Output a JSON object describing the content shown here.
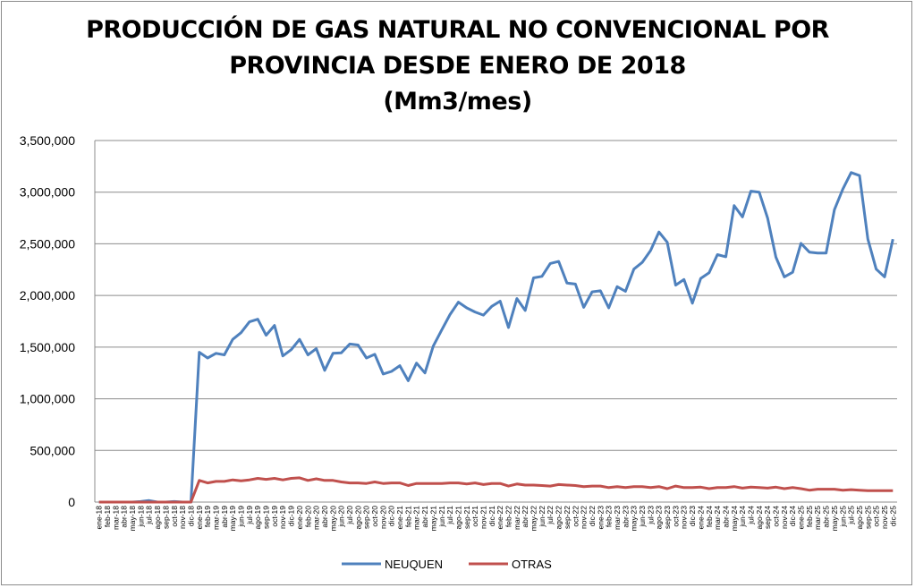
{
  "chart_data": {
    "type": "line",
    "title_lines": [
      "PRODUCCIÓN DE GAS NATURAL NO CONVENCIONAL POR",
      "PROVINCIA DESDE ENERO DE 2018",
      "(Mm3/mes)"
    ],
    "xlabel": "",
    "ylabel": "",
    "ylim": [
      0,
      3500000
    ],
    "y_ticks": [
      0,
      500000,
      1000000,
      1500000,
      2000000,
      2500000,
      3000000,
      3500000
    ],
    "y_tick_labels": [
      "0",
      "500,000",
      "1,000,000",
      "1,500,000",
      "2,000,000",
      "2,500,000",
      "3,000,000",
      "3,500,000"
    ],
    "grid": "horizontal",
    "legend_position": "bottom",
    "categories": [
      "ene-18",
      "feb-18",
      "mar-18",
      "abr-18",
      "may-18",
      "jun-18",
      "jul-18",
      "ago-18",
      "sep-18",
      "oct-18",
      "nov-18",
      "dic-18",
      "ene-19",
      "feb-19",
      "mar-19",
      "abr-19",
      "may-19",
      "jun-19",
      "jul-19",
      "ago-19",
      "sep-19",
      "oct-19",
      "nov-19",
      "dic-19",
      "ene-20",
      "feb-20",
      "mar-20",
      "abr-20",
      "may-20",
      "jun-20",
      "jul-20",
      "ago-20",
      "sep-20",
      "oct-20",
      "nov-20",
      "dic-20",
      "ene-21",
      "feb-21",
      "mar-21",
      "abr-21",
      "may-21",
      "jun-21",
      "jul-21",
      "ago-21",
      "sep-21",
      "oct-21",
      "nov-21",
      "dic-21",
      "ene-22",
      "feb-22",
      "mar-22",
      "abr-22",
      "may-22",
      "jun-22",
      "jul-22",
      "ago-22",
      "sep-22",
      "oct-22",
      "nov-22",
      "dic-22",
      "ene-23",
      "feb-23",
      "mar-23",
      "abr-23",
      "may-23",
      "jun-23",
      "jul-23",
      "ago-23",
      "sep-23",
      "oct-23",
      "nov-23",
      "dic-23",
      "ene-24",
      "feb-24",
      "mar-24",
      "abr-24",
      "may-24",
      "jun-24",
      "jul-24",
      "ago-24",
      "sep-24",
      "oct-24",
      "nov-24",
      "dic-24",
      "ene-25",
      "feb-25",
      "mar-25",
      "abr-25",
      "may-25",
      "jun-25",
      "jul-25",
      "ago-25",
      "sep-25",
      "oct-25",
      "nov-25",
      "dic-25"
    ],
    "series": [
      {
        "name": "NEUQUEN",
        "color": "#4f81bd",
        "values": [
          0,
          0,
          0,
          0,
          0,
          5000,
          15000,
          0,
          0,
          5000,
          0,
          0,
          1450000,
          1395000,
          1440000,
          1425000,
          1575000,
          1640000,
          1745000,
          1770000,
          1615000,
          1710000,
          1415000,
          1475000,
          1575000,
          1425000,
          1485000,
          1275000,
          1440000,
          1445000,
          1530000,
          1520000,
          1395000,
          1430000,
          1240000,
          1265000,
          1320000,
          1175000,
          1345000,
          1250000,
          1510000,
          1665000,
          1815000,
          1935000,
          1880000,
          1840000,
          1810000,
          1895000,
          1945000,
          1690000,
          1970000,
          1855000,
          2170000,
          2185000,
          2310000,
          2330000,
          2120000,
          2110000,
          1885000,
          2035000,
          2045000,
          1880000,
          2085000,
          2040000,
          2255000,
          2320000,
          2435000,
          2615000,
          2515000,
          2100000,
          2155000,
          1925000,
          2165000,
          2220000,
          2395000,
          2375000,
          2870000,
          2760000,
          3010000,
          3000000,
          2750000,
          2370000,
          2180000,
          2225000,
          2505000,
          2420000,
          2410000,
          2410000,
          2830000,
          3030000,
          3190000,
          3160000,
          2545000,
          2255000,
          2180000,
          2545000
        ]
      },
      {
        "name": "OTRAS",
        "color": "#c0504d",
        "values": [
          0,
          0,
          0,
          0,
          0,
          0,
          0,
          0,
          0,
          0,
          0,
          0,
          210000,
          185000,
          200000,
          200000,
          215000,
          205000,
          215000,
          230000,
          220000,
          230000,
          215000,
          230000,
          235000,
          210000,
          225000,
          210000,
          210000,
          195000,
          185000,
          185000,
          180000,
          195000,
          180000,
          185000,
          185000,
          160000,
          180000,
          180000,
          180000,
          180000,
          185000,
          185000,
          175000,
          185000,
          170000,
          180000,
          180000,
          155000,
          175000,
          165000,
          165000,
          160000,
          155000,
          170000,
          165000,
          160000,
          150000,
          155000,
          155000,
          140000,
          150000,
          140000,
          150000,
          150000,
          140000,
          150000,
          130000,
          155000,
          140000,
          140000,
          145000,
          130000,
          140000,
          140000,
          150000,
          135000,
          145000,
          140000,
          135000,
          145000,
          130000,
          140000,
          130000,
          115000,
          125000,
          125000,
          125000,
          115000,
          120000,
          115000,
          110000,
          110000,
          110000,
          110000
        ]
      }
    ]
  }
}
